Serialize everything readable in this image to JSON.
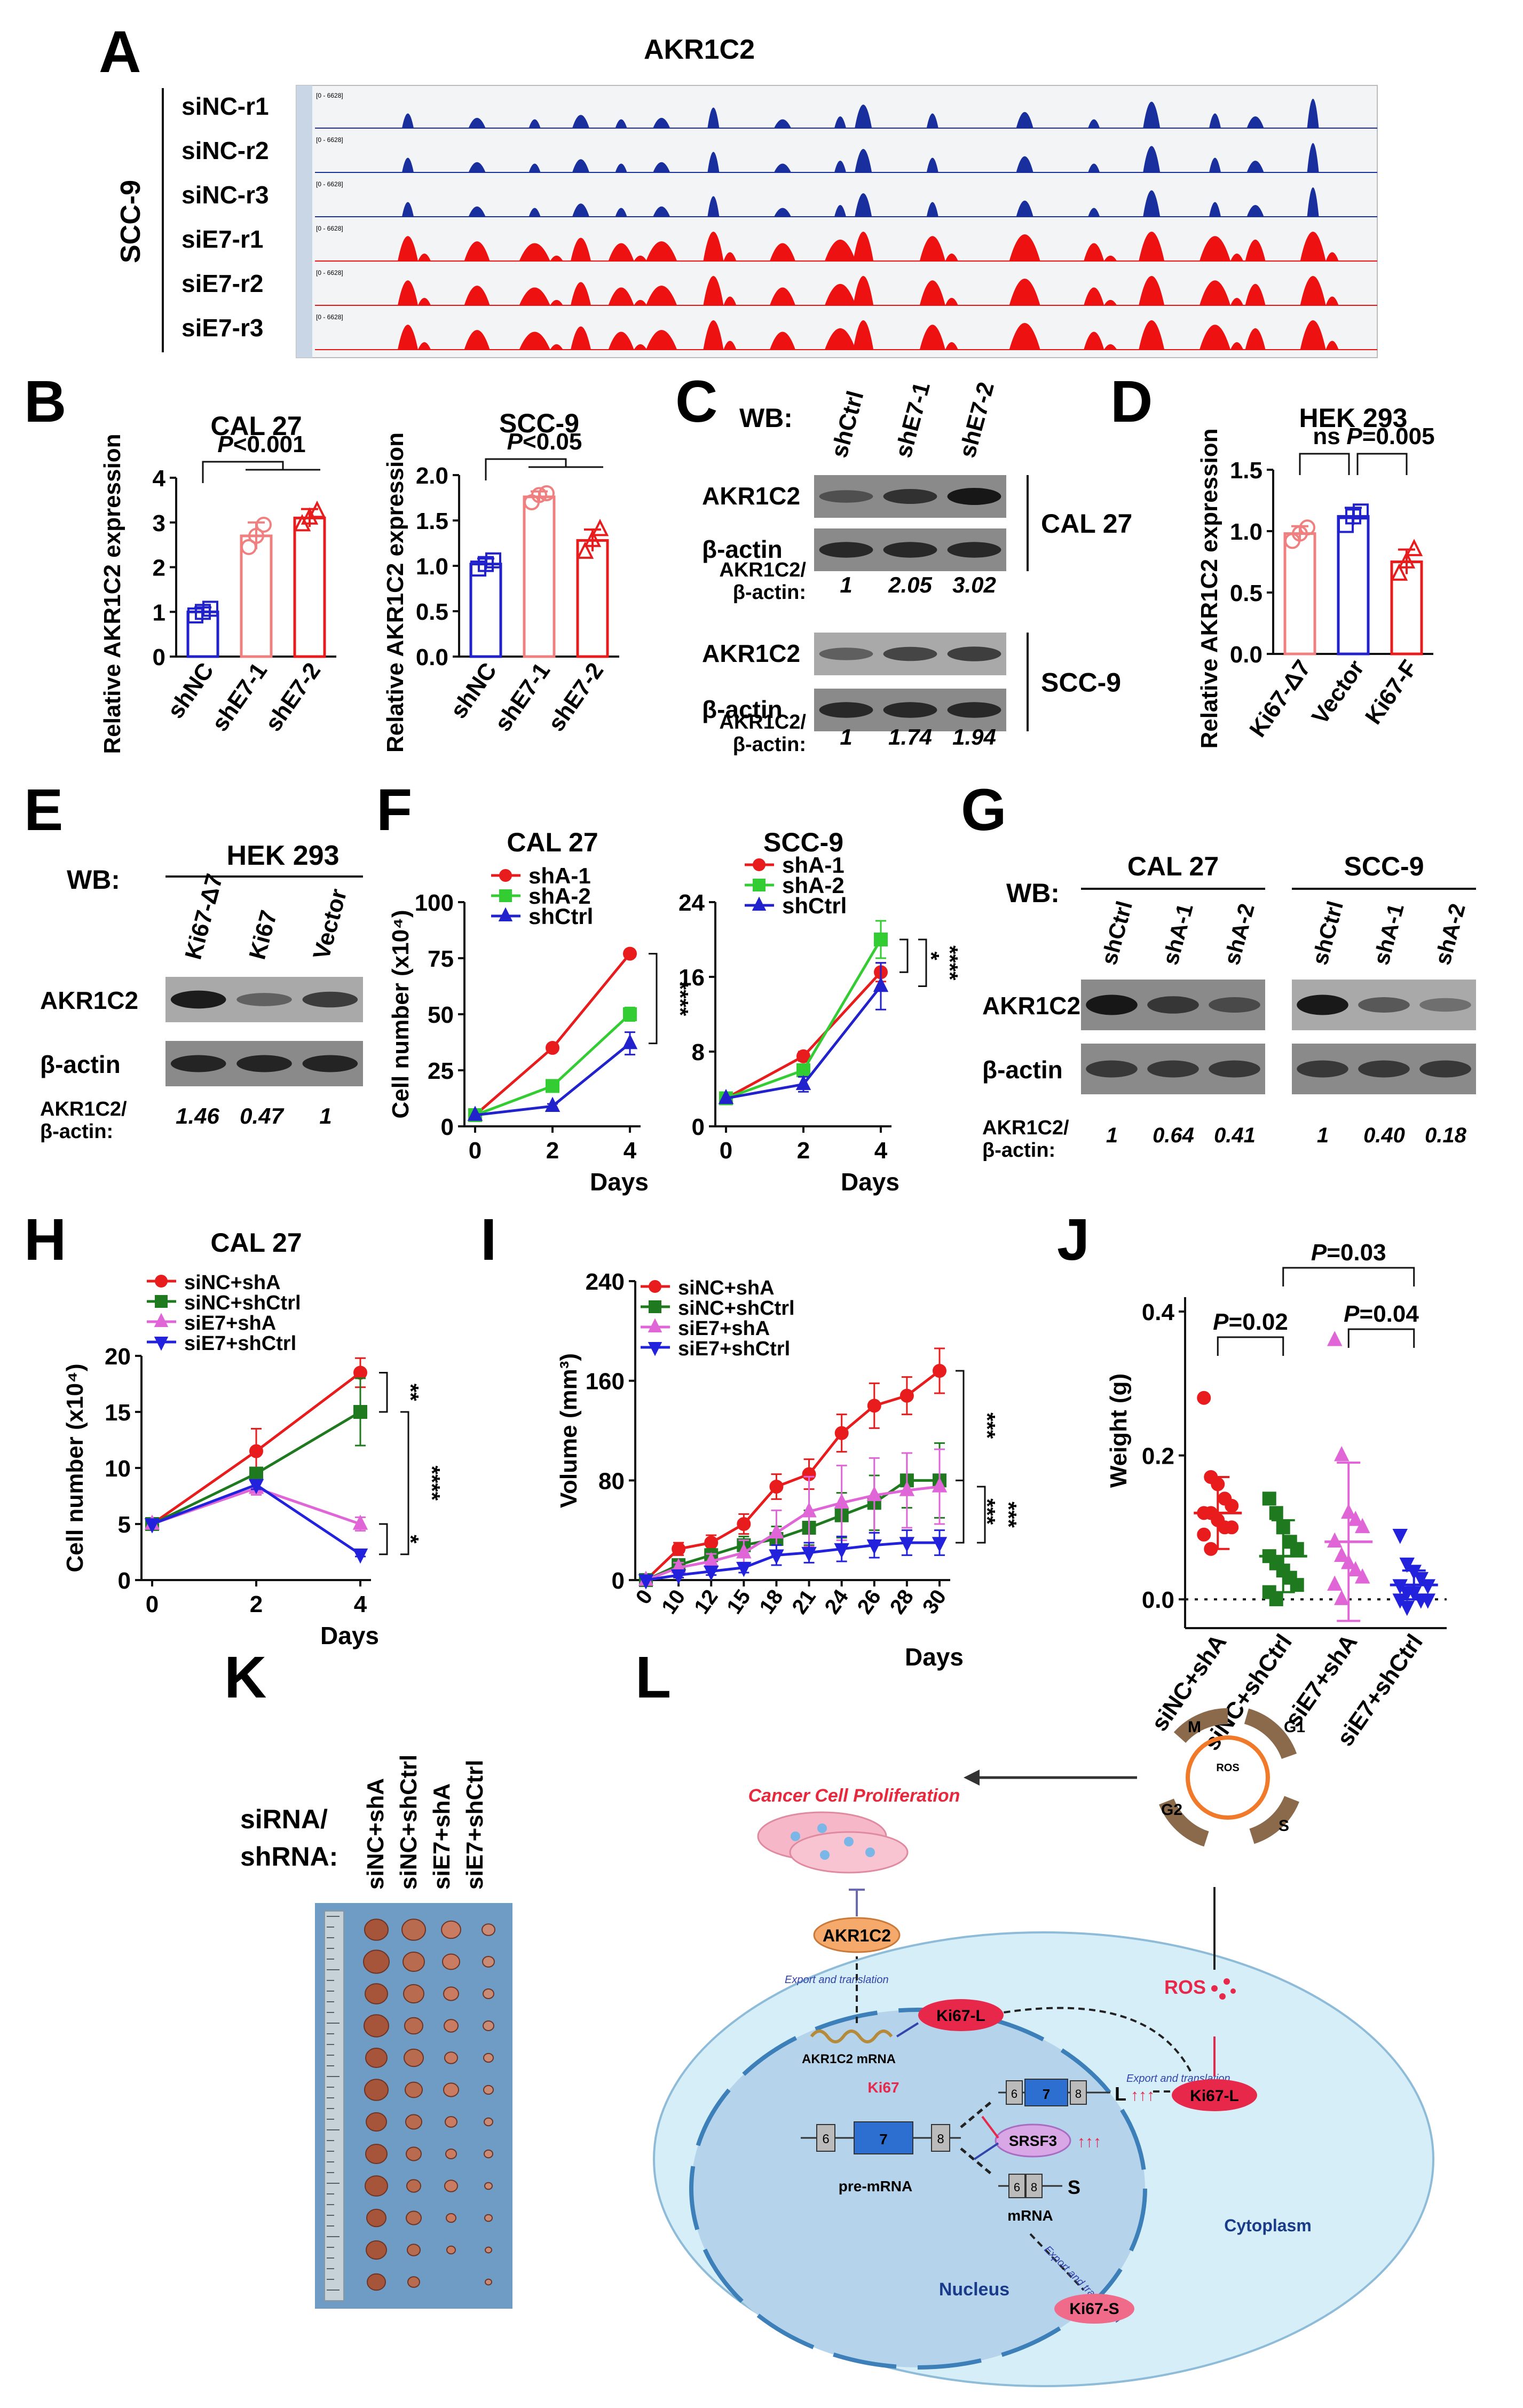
{
  "panels": {
    "A": {
      "letter": "A",
      "title": "AKR1C2",
      "cell_line": "SCC-9",
      "range_label": "[0 - 6628]",
      "tracks": [
        {
          "name": "siNC-r1",
          "color": "#1a2f9e"
        },
        {
          "name": "siNC-r2",
          "color": "#1a2f9e"
        },
        {
          "name": "siNC-r3",
          "color": "#1a2f9e"
        },
        {
          "name": "siE7-r1",
          "color": "#ee1111"
        },
        {
          "name": "siE7-r2",
          "color": "#ee1111"
        },
        {
          "name": "siE7-r3",
          "color": "#ee1111"
        }
      ]
    },
    "B": {
      "letter": "B"
    },
    "C": {
      "letter": "C",
      "wb_label": "WB:",
      "lanes": [
        "shCtrl",
        "shE7-1",
        "shE7-2"
      ],
      "blocks": [
        {
          "cell_line": "CAL 27",
          "rows": [
            "AKR1C2",
            "β-actin"
          ],
          "ratio_label": "AKR1C2/\nβ-actin:",
          "ratios": [
            "1",
            "2.05",
            "3.02"
          ]
        },
        {
          "cell_line": "SCC-9",
          "rows": [
            "AKR1C2",
            "β-actin"
          ],
          "ratio_label": "AKR1C2/\nβ-actin:",
          "ratios": [
            "1",
            "1.74",
            "1.94"
          ]
        }
      ]
    },
    "D": {
      "letter": "D"
    },
    "E": {
      "letter": "E",
      "wb_label": "WB:",
      "cell_line": "HEK 293",
      "lanes": [
        "Ki67-Δ7",
        "Ki67",
        "Vector"
      ],
      "rows": [
        "AKR1C2",
        "β-actin"
      ],
      "ratio_label": "AKR1C2/\nβ-actin:",
      "ratios": [
        "1.46",
        "0.47",
        "1"
      ]
    },
    "F": {
      "letter": "F"
    },
    "G": {
      "letter": "G",
      "wb_label": "WB:",
      "groups": [
        {
          "cell_line": "CAL 27",
          "lanes": [
            "shCtrl",
            "shA-1",
            "shA-2"
          ],
          "ratios": [
            "1",
            "0.64",
            "0.41"
          ]
        },
        {
          "cell_line": "SCC-9",
          "lanes": [
            "shCtrl",
            "shA-1",
            "shA-2"
          ],
          "ratios": [
            "1",
            "0.40",
            "0.18"
          ]
        }
      ],
      "rows": [
        "AKR1C2",
        "β-actin"
      ],
      "ratio_label": "AKR1C2/\nβ-actin:"
    },
    "H": {
      "letter": "H"
    },
    "I": {
      "letter": "I"
    },
    "J": {
      "letter": "J"
    },
    "K": {
      "letter": "K",
      "row_label": "siRNA/\nshRNA:",
      "groups": [
        "siNC+shA",
        "siNC+shCtrl",
        "siE7+shA",
        "siE7+shCtrl"
      ]
    },
    "L": {
      "letter": "L",
      "labels": {
        "proliferation": "Cancer Cell Proliferation",
        "akr1c2": "AKR1C2",
        "export1": "Export and translation",
        "mrna": "AKR1C2 mRNA",
        "ki67l_nuc": "Ki67-L",
        "ki67l_cyt": "Ki67-L",
        "ki67s": "Ki67-S",
        "ki67": "Ki67",
        "srsf3": "SRSF3",
        "up": "↑↑↑",
        "premrna": "pre-mRNA",
        "mrna2": "mRNA",
        "nucleus": "Nucleus",
        "cytoplasm": "Cytoplasm",
        "ros": "ROS",
        "ros_small": "ROS",
        "long": "L",
        "short": "S",
        "exon6": "6",
        "exon7": "7",
        "exon8": "8",
        "m": "M",
        "g1": "G1",
        "g2": "G2",
        "s": "S",
        "export2": "Export and translation",
        "export3": "Export and translation"
      }
    }
  },
  "chart_data": [
    {
      "id": "B1",
      "type": "bar",
      "title": "CAL 27",
      "ylabel": "Relative AKR1C2 expression",
      "ylim": [
        0,
        4
      ],
      "yticks": [
        0,
        1,
        2,
        3,
        4
      ],
      "categories": [
        "shNC",
        "shE7-1",
        "shE7-2"
      ],
      "values": [
        1.0,
        2.7,
        3.1
      ],
      "errors": [
        0.1,
        0.3,
        0.2
      ],
      "points": [
        [
          0.92,
          1.0,
          1.07
        ],
        [
          2.45,
          2.7,
          2.95
        ],
        [
          2.95,
          3.1,
          3.25
        ]
      ],
      "colors": [
        "#2222cc",
        "#f08080",
        "#e81c1c"
      ],
      "markers": [
        "square",
        "circle",
        "triangle"
      ],
      "annotation": "P<0.001"
    },
    {
      "id": "B2",
      "type": "bar",
      "title": "SCC-9",
      "ylabel": "Relative AKR1C2 expression",
      "ylim": [
        0,
        2.0
      ],
      "yticks": [
        0,
        0.5,
        1.0,
        1.5,
        2.0
      ],
      "tick_labels": [
        "0.0",
        "0.5",
        "1.0",
        "1.5",
        "2.0"
      ],
      "categories": [
        "shNC",
        "shE7-1",
        "shE7-2"
      ],
      "values": [
        1.02,
        1.76,
        1.28
      ],
      "errors": [
        0.06,
        0.06,
        0.12
      ],
      "points": [
        [
          0.97,
          1.02,
          1.06
        ],
        [
          1.7,
          1.78,
          1.8
        ],
        [
          1.15,
          1.28,
          1.4
        ]
      ],
      "colors": [
        "#2222cc",
        "#f08080",
        "#e81c1c"
      ],
      "markers": [
        "square",
        "circle",
        "triangle"
      ],
      "annotation": "P<0.05"
    },
    {
      "id": "D",
      "type": "bar",
      "title": "HEK 293",
      "ylabel": "Relative AKR1C2 expression",
      "ylim": [
        0,
        1.5
      ],
      "yticks": [
        0,
        0.5,
        1.0,
        1.5
      ],
      "tick_labels": [
        "0.0",
        "0.5",
        "1.0",
        "1.5"
      ],
      "categories": [
        "Ki67-Δ7",
        "Vector",
        "Ki67-F"
      ],
      "values": [
        0.98,
        1.12,
        0.75
      ],
      "errors": [
        0.06,
        0.07,
        0.1
      ],
      "points": [
        [
          0.92,
          0.98,
          1.03
        ],
        [
          1.05,
          1.12,
          1.16
        ],
        [
          0.65,
          0.75,
          0.85
        ]
      ],
      "colors": [
        "#f08080",
        "#2222cc",
        "#e81c1c"
      ],
      "markers": [
        "circle",
        "square",
        "triangle"
      ],
      "annotation_left": "ns",
      "annotation_right": "P=0.005"
    },
    {
      "id": "F1",
      "type": "line",
      "title": "CAL 27",
      "ylabel": "Cell number (x10⁴)",
      "xlabel": "Days",
      "x": [
        0,
        2,
        4
      ],
      "xlim": [
        0,
        4
      ],
      "xticks": [
        0,
        2,
        4
      ],
      "ylim": [
        0,
        100
      ],
      "yticks": [
        0,
        25,
        50,
        75,
        100
      ],
      "series": [
        {
          "name": "shA-1",
          "values": [
            5,
            35,
            77
          ],
          "errors": [
            0,
            1,
            1
          ],
          "color": "#e81c1c",
          "marker": "circle"
        },
        {
          "name": "shA-2",
          "values": [
            5,
            18,
            50
          ],
          "errors": [
            0,
            1,
            3
          ],
          "color": "#33cc33",
          "marker": "square"
        },
        {
          "name": "shCtrl",
          "values": [
            5,
            9,
            37
          ],
          "errors": [
            0,
            1,
            5
          ],
          "color": "#2222cc",
          "marker": "triangle"
        }
      ],
      "sig": [
        "****"
      ]
    },
    {
      "id": "F2",
      "type": "line",
      "title": "SCC-9",
      "xlabel": "Days",
      "x": [
        0,
        2,
        4
      ],
      "xlim": [
        0,
        4
      ],
      "xticks": [
        0,
        2,
        4
      ],
      "ylim": [
        0,
        24
      ],
      "yticks": [
        0,
        8,
        16,
        24
      ],
      "series": [
        {
          "name": "shA-1",
          "values": [
            3,
            7.5,
            16.5
          ],
          "errors": [
            0,
            0.5,
            1
          ],
          "color": "#e81c1c",
          "marker": "circle"
        },
        {
          "name": "shA-2",
          "values": [
            3,
            6,
            20
          ],
          "errors": [
            0,
            0.6,
            2
          ],
          "color": "#33cc33",
          "marker": "square"
        },
        {
          "name": "shCtrl",
          "values": [
            3,
            4.5,
            15
          ],
          "errors": [
            0,
            0.8,
            2.5
          ],
          "color": "#2222cc",
          "marker": "triangle"
        }
      ],
      "sig": [
        "*",
        "****"
      ]
    },
    {
      "id": "H",
      "type": "line",
      "title": "CAL 27",
      "ylabel": "Cell number (x10⁴)",
      "xlabel": "Days",
      "x": [
        0,
        2,
        4
      ],
      "xlim": [
        0,
        4
      ],
      "xticks": [
        0,
        2,
        4
      ],
      "ylim": [
        0,
        20
      ],
      "yticks": [
        0,
        5,
        10,
        15,
        20
      ],
      "series": [
        {
          "name": "siNC+shA",
          "values": [
            5,
            11.5,
            18.5
          ],
          "errors": [
            0,
            2,
            1.3
          ],
          "color": "#e81c1c",
          "marker": "circle"
        },
        {
          "name": "siNC+shCtrl",
          "values": [
            5,
            9.5,
            15
          ],
          "errors": [
            0,
            0.5,
            3
          ],
          "color": "#1f7a1f",
          "marker": "square"
        },
        {
          "name": "siE7+shA",
          "values": [
            5,
            8.2,
            5
          ],
          "errors": [
            0,
            0.6,
            0.6
          ],
          "color": "#e066d8",
          "marker": "triangle"
        },
        {
          "name": "siE7+shCtrl",
          "values": [
            5,
            8.5,
            2.3
          ],
          "errors": [
            0,
            0.4,
            0.2
          ],
          "color": "#2222dd",
          "marker": "triangle-down"
        }
      ],
      "sig": [
        "**",
        "****",
        "*"
      ]
    },
    {
      "id": "I",
      "type": "line",
      "ylabel": "Volume (mm³)",
      "xlabel": "Days",
      "x": [
        0,
        10,
        12,
        15,
        18,
        21,
        24,
        26,
        28,
        30
      ],
      "ylim": [
        0,
        240
      ],
      "yticks": [
        0,
        80,
        160,
        240
      ],
      "series": [
        {
          "name": "siNC+shA",
          "values": [
            0,
            25,
            30,
            45,
            75,
            85,
            118,
            140,
            148,
            168
          ],
          "errors": [
            0,
            5,
            6,
            8,
            10,
            12,
            15,
            18,
            15,
            18
          ],
          "color": "#e81c1c",
          "marker": "circle"
        },
        {
          "name": "siNC+shCtrl",
          "values": [
            0,
            12,
            20,
            28,
            33,
            42,
            52,
            62,
            80,
            80
          ],
          "errors": [
            0,
            3,
            5,
            7,
            10,
            14,
            18,
            22,
            22,
            30
          ],
          "color": "#1f7a1f",
          "marker": "square"
        },
        {
          "name": "siE7+shA",
          "values": [
            0,
            10,
            15,
            22,
            38,
            55,
            62,
            68,
            72,
            75
          ],
          "errors": [
            0,
            4,
            6,
            10,
            18,
            28,
            30,
            30,
            30,
            30
          ],
          "color": "#e066d8",
          "marker": "triangle"
        },
        {
          "name": "siE7+shCtrl",
          "values": [
            0,
            4,
            7,
            10,
            20,
            22,
            25,
            28,
            30,
            30
          ],
          "errors": [
            0,
            2,
            3,
            4,
            8,
            8,
            10,
            10,
            10,
            10
          ],
          "color": "#2222dd",
          "marker": "triangle-down"
        }
      ],
      "sig": [
        "***",
        "***",
        "***"
      ]
    },
    {
      "id": "J",
      "type": "scatter",
      "ylabel": "Weight (g)",
      "ylim": [
        -0.04,
        0.42
      ],
      "yticks": [
        0.0,
        0.2,
        0.4
      ],
      "tick_labels": [
        "0.0",
        "0.2",
        "0.4"
      ],
      "categories": [
        "siNC+shA",
        "siNC+shCtrl",
        "siE7+shA",
        "siE7+shCtrl"
      ],
      "groups": [
        {
          "mean": 0.12,
          "sd": 0.05,
          "color": "#e81c1c",
          "marker": "circle",
          "points": [
            0.28,
            0.17,
            0.16,
            0.14,
            0.13,
            0.12,
            0.12,
            0.11,
            0.1,
            0.1,
            0.09,
            0.07
          ]
        },
        {
          "mean": 0.06,
          "sd": 0.05,
          "color": "#1f7a1f",
          "marker": "square",
          "points": [
            0.14,
            0.12,
            0.1,
            0.08,
            0.07,
            0.06,
            0.05,
            0.04,
            0.03,
            0.02,
            0.01,
            0.0
          ]
        },
        {
          "mean": 0.08,
          "sd": 0.11,
          "color": "#e066d8",
          "marker": "triangle",
          "points": [
            0.36,
            0.2,
            0.12,
            0.11,
            0.1,
            0.08,
            0.06,
            0.05,
            0.04,
            0.03,
            0.02,
            0.0
          ]
        },
        {
          "mean": 0.02,
          "sd": 0.02,
          "color": "#2222dd",
          "marker": "triangle-down",
          "points": [
            0.09,
            0.05,
            0.04,
            0.03,
            0.02,
            0.02,
            0.01,
            0.01,
            0.0,
            0.0,
            0.0,
            -0.01
          ]
        }
      ],
      "annotations": [
        "P=0.02",
        "P=0.04",
        "P=0.03"
      ]
    }
  ]
}
